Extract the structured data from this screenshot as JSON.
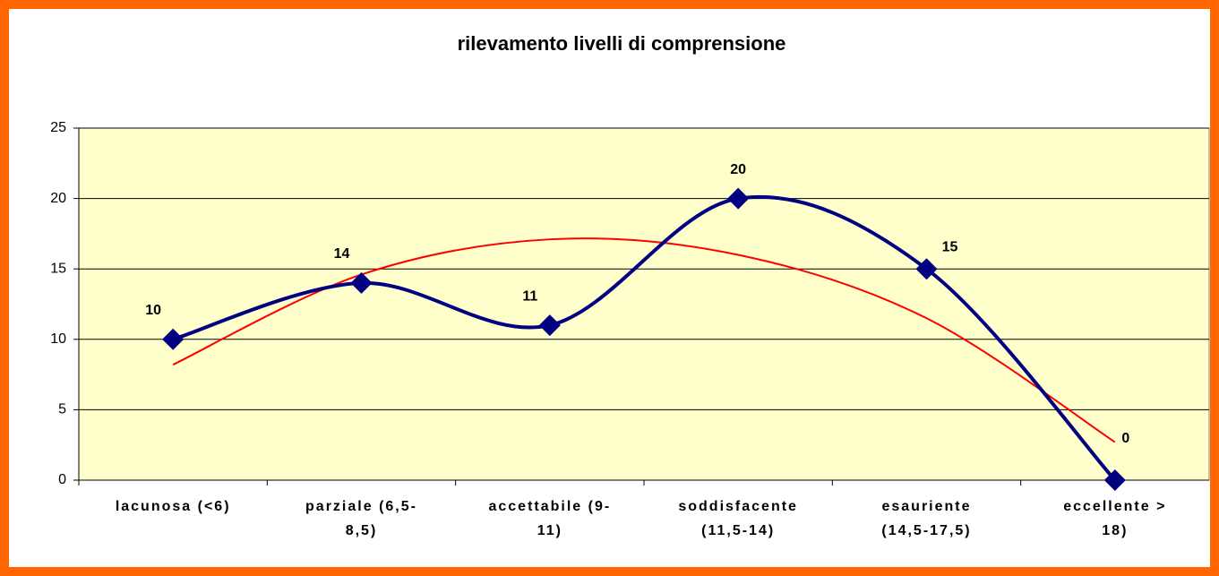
{
  "chart_data": {
    "type": "line",
    "title": "rilevamento livelli di comprensione",
    "categories": [
      [
        "lacunosa (<6)"
      ],
      [
        "parziale (6,5-",
        "8,5)"
      ],
      [
        "accettabile (9-",
        "11)"
      ],
      [
        "soddisfacente",
        "(11,5-14)"
      ],
      [
        "esauriente",
        "(14,5-17,5)"
      ],
      [
        "eccellente >",
        "18)"
      ]
    ],
    "values": [
      10,
      14,
      11,
      20,
      15,
      0
    ],
    "color": "#000080",
    "trendline": {
      "color": "#ff0000",
      "values": [
        8.2,
        14.6,
        17.1,
        16.0,
        11.5,
        2.7
      ]
    },
    "ylim": [
      0,
      25
    ],
    "yticks": [
      0,
      5,
      10,
      15,
      20,
      25
    ],
    "grid": true
  }
}
